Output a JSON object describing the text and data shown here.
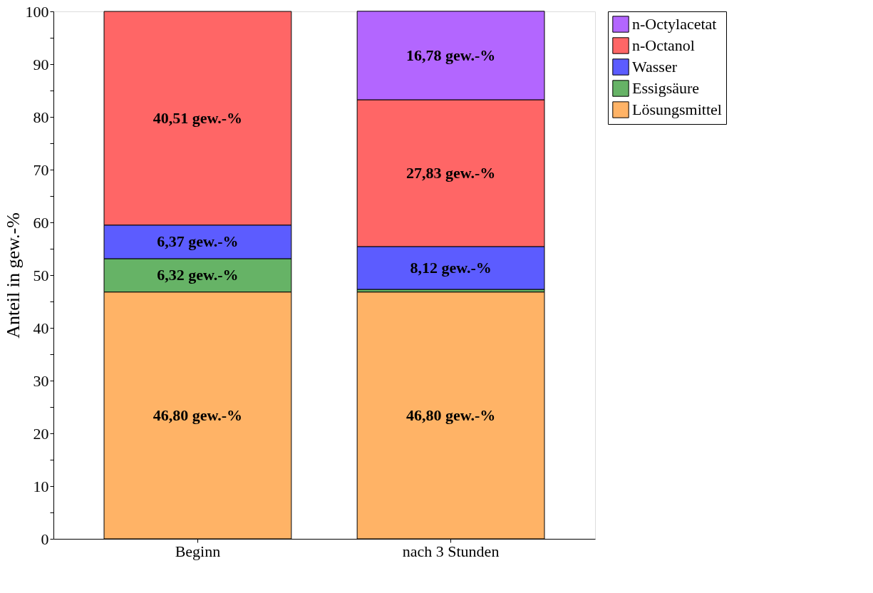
{
  "chart_data": {
    "type": "bar",
    "stacked": true,
    "ylabel": "Anteil  in  gew.-%",
    "categories": [
      "Beginn",
      "nach 3 Stunden"
    ],
    "series": [
      {
        "name": "Lösungsmittel",
        "color": "#ffb366",
        "values": [
          46.8,
          46.8
        ],
        "value_labels": [
          "46,80 gew.-%",
          "46,80 gew.-%"
        ]
      },
      {
        "name": "Essigsäure",
        "color": "#66b366",
        "values": [
          6.32,
          0.5
        ],
        "value_labels": [
          "6,32 gew.-%",
          null
        ]
      },
      {
        "name": "Wasser",
        "color": "#5c5cff",
        "values": [
          6.37,
          8.12
        ],
        "value_labels": [
          "6,37 gew.-%",
          "8,12 gew.-%"
        ]
      },
      {
        "name": "n-Octanol",
        "color": "#ff6666",
        "values": [
          40.51,
          27.83
        ],
        "value_labels": [
          "40,51 gew.-%",
          "27,83 gew.-%"
        ]
      },
      {
        "name": "n-Octylacetat",
        "color": "#b366ff",
        "values": [
          null,
          16.78
        ],
        "value_labels": [
          null,
          "16,78 gew.-%"
        ]
      }
    ],
    "ylim": [
      0,
      100
    ],
    "yticks": [
      0,
      {
        "value": 5,
        "label": null
      },
      10,
      {
        "value": 15,
        "label": null
      },
      20,
      {
        "value": 25,
        "label": null
      },
      30,
      {
        "value": 35,
        "label": null
      },
      40,
      {
        "value": 45,
        "label": null
      },
      50,
      {
        "value": 55,
        "label": null
      },
      60,
      {
        "value": 65,
        "label": null
      },
      70,
      {
        "value": 75,
        "label": null
      },
      80,
      {
        "value": 85,
        "label": null
      },
      90,
      {
        "value": 95,
        "label": null
      },
      100
    ],
    "grid": false,
    "legend": "right"
  }
}
